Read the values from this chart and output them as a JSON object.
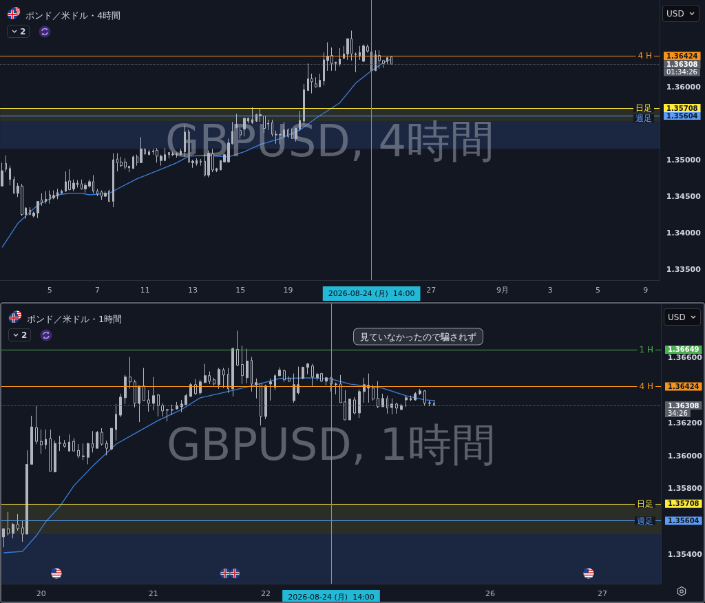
{
  "chart_data": [
    {
      "type": "candlestick",
      "title": "ポンド／米ドル・4時間",
      "subtitle": "GBPUSD, 4時間",
      "categories": [
        null,
        null,
        null,
        null,
        null,
        null,
        null,
        null,
        null,
        null,
        null,
        null,
        "5",
        null,
        null,
        null,
        null,
        null,
        null,
        null,
        null,
        null,
        null,
        null,
        "7",
        null,
        null,
        null,
        null,
        null,
        null,
        null,
        null,
        null,
        null,
        null,
        "11",
        null,
        null,
        null,
        null,
        null,
        null,
        null,
        null,
        null,
        null,
        null,
        "13",
        null,
        null,
        null,
        null,
        null,
        null,
        null,
        null,
        null,
        null,
        null,
        "15",
        null,
        null,
        null,
        null,
        null,
        null,
        null,
        null,
        null,
        null,
        null,
        "19",
        null,
        null,
        null,
        null,
        null,
        null,
        null,
        null,
        null,
        null,
        null,
        null,
        null,
        null,
        null,
        null,
        null,
        null,
        null,
        null,
        "2026-08-24 (月)  14:00",
        null,
        null,
        null,
        null,
        null,
        null,
        null,
        null,
        null,
        null,
        null,
        null,
        null,
        null,
        "27",
        null,
        null,
        null,
        null,
        null,
        null,
        null,
        null,
        null,
        null,
        null,
        null,
        null,
        null,
        null,
        null,
        null,
        "9月",
        null,
        null,
        null,
        null,
        null,
        null,
        null,
        null,
        null,
        null,
        null,
        "3",
        null,
        null,
        null,
        null,
        null,
        null,
        null,
        null,
        null,
        null,
        null,
        "5",
        null,
        null,
        null,
        null,
        null,
        null,
        null,
        null,
        null,
        null,
        null,
        "9",
        null,
        null,
        null
      ],
      "series": [
        {
          "type": "line",
          "color": "#3d7fd9",
          "values": [
            1.338,
            null,
            null,
            null,
            1.3413,
            null,
            null,
            null,
            null,
            1.3438,
            null,
            null,
            null,
            null,
            1.3452,
            null,
            null,
            1.3454,
            null,
            null,
            1.3454,
            null,
            1.3452,
            null,
            null,
            null,
            null,
            1.3454,
            null,
            1.346,
            null,
            null,
            null,
            null,
            1.3474,
            null,
            null,
            null,
            null,
            null,
            1.3487,
            null,
            null,
            null,
            1.3496,
            null,
            null,
            1.3505,
            null,
            null,
            null,
            1.3506,
            null,
            null,
            null,
            null,
            null,
            1.3504,
            null,
            null,
            null,
            1.3511,
            null,
            null,
            null,
            1.3521,
            null,
            null,
            null,
            null,
            1.3529,
            null,
            null,
            null,
            null,
            1.3541,
            null,
            null,
            null,
            1.3557,
            null,
            null,
            null,
            null,
            null,
            1.3578,
            null,
            null,
            null,
            1.3605,
            null,
            null,
            null,
            1.3622,
            null,
            null,
            1.3633,
            null,
            1.3638,
            null,
            null,
            null,
            null,
            null,
            null,
            null,
            null,
            null,
            null,
            null,
            null,
            null,
            null,
            null,
            null,
            null,
            null,
            null,
            null,
            null,
            null,
            null,
            null,
            null,
            null,
            null,
            null,
            null,
            null,
            null,
            null,
            null,
            null,
            null,
            null,
            null,
            null,
            null,
            null,
            null,
            null,
            null,
            null,
            null,
            null,
            null,
            null,
            null,
            null,
            null,
            null,
            null,
            null,
            null,
            null,
            null,
            null,
            null,
            null,
            null,
            null,
            null,
            null,
            null,
            null,
            null
          ]
        },
        {
          "type": "candlestick",
          "color": "#b2b5be",
          "ohlc": [
            [
              1.3464,
              1.3496,
              1.3464,
              1.3485
            ],
            [
              1.3495,
              1.3506,
              1.3483,
              1.3487
            ],
            [
              1.3473,
              1.3492,
              1.3465,
              1.3488
            ],
            [
              1.3473,
              1.3477,
              1.3454,
              1.3454
            ],
            [
              1.3454,
              1.3468,
              1.3449,
              1.3464
            ],
            [
              1.3464,
              1.3467,
              1.3423,
              1.3425
            ],
            [
              1.3425,
              1.3435,
              1.3419,
              1.3434
            ],
            [
              1.3431,
              1.3435,
              1.3424,
              1.3425
            ],
            [
              1.3423,
              1.3429,
              1.3421,
              1.3427
            ],
            [
              1.3427,
              1.3443,
              1.342,
              1.3443
            ],
            [
              1.3445,
              1.3454,
              1.3437,
              1.3441
            ],
            [
              1.3443,
              1.3457,
              1.344,
              1.3446
            ],
            [
              1.3452,
              1.3458,
              1.344,
              1.3446
            ],
            [
              1.3448,
              1.3458,
              1.3446,
              1.3451
            ],
            [
              1.345,
              1.346,
              1.3446,
              1.3455
            ],
            [
              1.3454,
              1.3459,
              1.3454,
              1.3457
            ],
            [
              1.3457,
              1.3484,
              1.3456,
              1.347
            ],
            [
              1.3471,
              1.3487,
              1.3458,
              1.3459
            ],
            [
              1.346,
              1.3473,
              1.3457,
              1.3468
            ],
            [
              1.3466,
              1.3472,
              1.3462,
              1.3468
            ],
            [
              1.3467,
              1.3473,
              1.3459,
              1.346
            ],
            [
              1.346,
              1.3468,
              1.3455,
              1.3465
            ],
            [
              1.3464,
              1.3473,
              1.3462,
              1.347
            ],
            [
              1.347,
              1.3479,
              1.3454,
              1.3457
            ],
            [
              1.3457,
              1.346,
              1.345,
              1.3453
            ],
            [
              1.3456,
              1.3458,
              1.3445,
              1.345
            ],
            [
              1.345,
              1.3457,
              1.3449,
              1.3454
            ],
            [
              1.3457,
              1.3459,
              1.3442,
              1.3443
            ],
            [
              1.3443,
              1.3509,
              1.3435,
              1.35
            ],
            [
              1.3501,
              1.3509,
              1.3484,
              1.3496
            ],
            [
              1.3497,
              1.3504,
              1.349,
              1.3492
            ],
            [
              1.3497,
              1.3502,
              1.3487,
              1.349
            ],
            [
              1.3489,
              1.3492,
              1.3483,
              1.3491
            ],
            [
              1.3488,
              1.3506,
              1.3488,
              1.3504
            ],
            [
              1.3504,
              1.3507,
              1.3492,
              1.3496
            ],
            [
              1.3496,
              1.3531,
              1.3496,
              1.3515
            ],
            [
              1.3514,
              1.3516,
              1.3507,
              1.3508
            ],
            [
              1.3507,
              1.3514,
              1.3506,
              1.3511
            ],
            [
              1.3511,
              1.3515,
              1.3507,
              1.3512
            ],
            [
              1.3513,
              1.3516,
              1.3496,
              1.3505
            ],
            [
              1.3499,
              1.3507,
              1.3492,
              1.3505
            ],
            [
              1.3499,
              1.3516,
              1.3498,
              1.3507
            ],
            [
              1.351,
              1.351,
              1.3502,
              1.3507
            ],
            [
              1.3507,
              1.3511,
              1.3505,
              1.3508
            ],
            [
              1.3507,
              1.351,
              1.3503,
              1.3508
            ],
            [
              1.3507,
              1.3515,
              1.3506,
              1.3512
            ],
            [
              1.3511,
              1.3547,
              1.3504,
              1.3538
            ],
            [
              1.3538,
              1.3541,
              1.3496,
              1.3497
            ],
            [
              1.3496,
              1.35,
              1.3489,
              1.3498
            ],
            [
              1.3495,
              1.3502,
              1.3492,
              1.3499
            ],
            [
              1.3497,
              1.3501,
              1.3492,
              1.3498
            ],
            [
              1.3498,
              1.3508,
              1.3477,
              1.3479
            ],
            [
              1.3479,
              1.3513,
              1.3476,
              1.3509
            ],
            [
              1.3508,
              1.3515,
              1.3483,
              1.3486
            ],
            [
              1.3485,
              1.3489,
              1.3483,
              1.3488
            ],
            [
              1.3486,
              1.3499,
              1.3486,
              1.3499
            ],
            [
              1.3497,
              1.3508,
              1.3497,
              1.3507
            ],
            [
              1.3497,
              1.3529,
              1.3497,
              1.3523
            ],
            [
              1.3522,
              1.3552,
              1.3521,
              1.3539
            ],
            [
              1.3544,
              1.3563,
              1.3543,
              1.3549
            ],
            [
              1.354,
              1.3544,
              1.3529,
              1.3534
            ],
            [
              1.3542,
              1.3557,
              1.3532,
              1.3557
            ],
            [
              1.3553,
              1.3558,
              1.355,
              1.3557
            ],
            [
              1.3551,
              1.3572,
              1.3549,
              1.3555
            ],
            [
              1.3553,
              1.3563,
              1.3552,
              1.3562
            ],
            [
              1.356,
              1.357,
              1.3552,
              1.3562
            ],
            [
              1.356,
              1.3561,
              1.3537,
              1.3543
            ],
            [
              1.3549,
              1.3555,
              1.3541,
              1.355
            ],
            [
              1.3551,
              1.3555,
              1.3532,
              1.3535
            ],
            [
              1.3534,
              1.354,
              1.3522,
              1.3535
            ],
            [
              1.3534,
              1.3535,
              1.3521,
              1.3535
            ],
            [
              1.3532,
              1.3552,
              1.353,
              1.3541
            ],
            [
              1.3541,
              1.3543,
              1.353,
              1.3532
            ],
            [
              1.3535,
              1.3543,
              1.3529,
              1.3529
            ],
            [
              1.3529,
              1.3544,
              1.3525,
              1.3543
            ],
            [
              1.3542,
              1.3567,
              1.354,
              1.3554
            ],
            [
              1.3553,
              1.3604,
              1.3548,
              1.3596
            ],
            [
              1.3595,
              1.3632,
              1.3595,
              1.3611
            ],
            [
              1.3611,
              1.3618,
              1.3591,
              1.3607
            ],
            [
              1.3604,
              1.3613,
              1.3599,
              1.36
            ],
            [
              1.36,
              1.3618,
              1.36,
              1.3609
            ],
            [
              1.3608,
              1.3647,
              1.3602,
              1.3637
            ],
            [
              1.3636,
              1.3661,
              1.3622,
              1.3642
            ],
            [
              1.3643,
              1.3654,
              1.3622,
              1.3632
            ],
            [
              1.3632,
              1.3634,
              1.3622,
              1.3634
            ],
            [
              1.3631,
              1.3653,
              1.3628,
              1.3638
            ],
            [
              1.3639,
              1.3656,
              1.3638,
              1.3645
            ],
            [
              1.3645,
              1.3666,
              1.3637,
              1.3666
            ],
            [
              1.3666,
              1.3677,
              1.3636,
              1.3645
            ],
            [
              1.3644,
              1.3647,
              1.362,
              1.3645
            ],
            [
              1.3643,
              1.3656,
              1.3637,
              1.3647
            ],
            [
              1.3635,
              1.3658,
              1.3634,
              1.3656
            ],
            [
              1.3655,
              1.3658,
              1.3647,
              1.3649
            ],
            [
              1.3648,
              1.365,
              1.3622,
              1.3622
            ],
            [
              1.3622,
              1.365,
              1.3622,
              1.3644
            ],
            [
              1.3643,
              1.365,
              1.3625,
              1.3636
            ],
            [
              1.3636,
              1.3637,
              1.3626,
              1.3632
            ],
            [
              1.3635,
              1.3641,
              1.3631,
              1.364
            ],
            [
              1.3641,
              1.3641,
              1.3631,
              1.3631
            ],
            null,
            null,
            null,
            null,
            null,
            null,
            null,
            null,
            null,
            null,
            null,
            null,
            null,
            null,
            null,
            null,
            null,
            null,
            null,
            null,
            null,
            null,
            null,
            null,
            null,
            null,
            null,
            null,
            null,
            null,
            null,
            null,
            null,
            null,
            null,
            null,
            null,
            null,
            null,
            null,
            null,
            null,
            null,
            null,
            null,
            null,
            null,
            null,
            null,
            null,
            null,
            null,
            null,
            null,
            null,
            null,
            null,
            null,
            null,
            null,
            null,
            null,
            null,
            null,
            null,
            null,
            null
          ]
        }
      ],
      "ylim": [
        1.3335,
        1.3719
      ],
      "yticks": [
        {
          "value": 1.335,
          "label": "1.33500"
        },
        {
          "value": 1.34,
          "label": "1.34000"
        },
        {
          "value": 1.345,
          "label": "1.34500"
        },
        {
          "value": 1.35,
          "label": "1.35000"
        },
        {
          "value": 1.35604,
          "label": "1.35604"
        },
        {
          "value": 1.35708,
          "label": "1.35708"
        },
        {
          "value": 1.36,
          "label": "1.36000"
        },
        {
          "value": 1.36308,
          "label": "1.36308"
        },
        {
          "value": 1.36424,
          "label": "1.36424"
        }
      ],
      "ref_lines": [
        {
          "axis": "y",
          "value": 1.36424,
          "label": "4 H",
          "color": "#f7931a"
        },
        {
          "axis": "y",
          "value": 1.36308,
          "label": null,
          "color": "#5d606b",
          "line_style": "dotted"
        },
        {
          "axis": "y",
          "value": 1.35708,
          "label": "日足",
          "color": "#ffeb3b"
        },
        {
          "axis": "y",
          "value": 1.35604,
          "label": "週足",
          "color": "#5b9cf6"
        },
        {
          "axis": "x",
          "value": "2026-08-24 (月)  14:00",
          "label": null,
          "color": "#22b8d6"
        }
      ],
      "bands": [
        {
          "axis": "y",
          "from": 1.3553,
          "to": 1.35708,
          "color": "#2b2d27"
        },
        {
          "axis": "y",
          "from": 1.3515,
          "to": 1.3553,
          "color": "#1b2740"
        }
      ],
      "annotations": [
        "2",
        "USD",
        "01:34:26"
      ]
    },
    {
      "type": "candlestick",
      "title": "ポンド／米ドル・1時間",
      "subtitle": "GBPUSD, 1時間",
      "categories": [
        null,
        null,
        null,
        null,
        null,
        null,
        null,
        null,
        "20",
        null,
        null,
        null,
        null,
        null,
        null,
        null,
        null,
        null,
        null,
        null,
        null,
        null,
        null,
        null,
        null,
        null,
        null,
        null,
        null,
        null,
        null,
        null,
        "21",
        null,
        null,
        null,
        null,
        null,
        null,
        null,
        null,
        null,
        null,
        null,
        null,
        null,
        null,
        null,
        null,
        null,
        null,
        null,
        null,
        null,
        null,
        null,
        "22",
        null,
        null,
        null,
        null,
        null,
        null,
        null,
        null,
        null,
        null,
        null,
        null,
        null,
        "2026-08-24 (月)  14:00",
        null,
        null,
        null,
        null,
        null,
        null,
        null,
        null,
        null,
        null,
        null,
        null,
        null,
        null,
        null,
        null,
        null,
        null,
        null,
        null,
        null,
        null,
        null,
        null,
        null,
        null,
        null,
        null,
        null,
        null,
        null,
        null,
        null,
        "26",
        null,
        null,
        null,
        null,
        null,
        null,
        null,
        null,
        null,
        null,
        null,
        null,
        null,
        null,
        null,
        null,
        null,
        null,
        null,
        null,
        null,
        null,
        null,
        "27",
        null,
        null,
        null,
        null,
        null,
        null,
        null,
        null,
        null,
        null,
        null,
        null
      ],
      "series": [
        {
          "type": "line",
          "color": "#3d7fd9",
          "values": [
            1.35409,
            null,
            null,
            null,
            1.35417,
            null,
            null,
            1.35514,
            null,
            1.35599,
            null,
            null,
            1.35692,
            null,
            null,
            1.35818,
            null,
            null,
            null,
            1.35937,
            null,
            null,
            null,
            null,
            1.36072,
            null,
            null,
            null,
            null,
            1.36152,
            null,
            null,
            null,
            1.36216,
            null,
            null,
            null,
            null,
            1.36283,
            null,
            null,
            null,
            1.36355,
            null,
            null,
            null,
            1.3638,
            null,
            null,
            null,
            null,
            null,
            null,
            null,
            1.36435,
            null,
            null,
            null,
            null,
            1.36473,
            null,
            null,
            null,
            null,
            null,
            null,
            1.36477,
            null,
            null,
            null,
            1.36469,
            null,
            null,
            null,
            1.36439,
            null,
            null,
            null,
            null,
            null,
            null,
            1.36414,
            null,
            null,
            null,
            null,
            1.36368,
            null,
            null,
            null,
            1.36342,
            null,
            1.36338,
            null,
            null,
            null,
            null,
            null,
            null,
            null,
            null,
            null,
            null,
            null,
            null,
            null,
            null,
            null,
            null,
            null,
            null,
            null,
            null,
            null,
            null,
            null,
            null,
            null,
            null,
            null,
            null,
            null,
            null,
            null,
            null,
            null,
            null,
            null,
            null,
            null,
            null,
            null,
            null,
            null,
            null,
            null,
            null,
            null,
            null,
            null,
            null
          ]
        },
        {
          "type": "candlestick",
          "color": "#b2b5be",
          "ohlc": [
            [
              1.35506,
              1.35556,
              1.35442,
              1.35556
            ],
            [
              1.35556,
              1.35658,
              1.35514,
              1.35527
            ],
            [
              1.35527,
              1.3559,
              1.35497,
              1.35582
            ],
            [
              1.35582,
              1.35645,
              1.35544,
              1.35556
            ],
            [
              1.35561,
              1.35603,
              1.35476,
              1.35523
            ],
            [
              1.35523,
              1.36034,
              1.35523,
              1.35949
            ],
            [
              1.35949,
              1.36245,
              1.35949,
              1.36177
            ],
            [
              1.36173,
              1.36308,
              1.36072,
              1.36089
            ],
            [
              1.36089,
              1.36161,
              1.36013,
              1.36068
            ],
            [
              1.36068,
              1.36161,
              1.36042,
              1.36101
            ],
            [
              1.36106,
              1.36161,
              1.35907,
              1.35907
            ],
            [
              1.35903,
              1.36093,
              1.35899,
              1.36076
            ],
            [
              1.36076,
              1.36123,
              1.3603,
              1.3608
            ],
            [
              1.36076,
              1.36097,
              1.36051,
              1.36059
            ],
            [
              1.3603,
              1.36131,
              1.36025,
              1.36085
            ],
            [
              1.36089,
              1.3611,
              1.3603,
              1.3603
            ],
            [
              1.36034,
              1.36072,
              1.35987,
              1.36
            ],
            [
              1.35996,
              1.36076,
              1.35975,
              1.36
            ],
            [
              1.35992,
              1.3608,
              1.35949,
              1.36076
            ],
            [
              1.36076,
              1.36152,
              1.36021,
              1.36051
            ],
            [
              1.36047,
              1.36152,
              1.36047,
              1.36144
            ],
            [
              1.36144,
              1.36169,
              1.36063,
              1.36072
            ],
            [
              1.36076,
              1.36093,
              1.36004,
              1.36047
            ],
            [
              1.36042,
              1.36169,
              1.36034,
              1.36169
            ],
            [
              1.36161,
              1.36317,
              1.36093,
              1.36254
            ],
            [
              1.36249,
              1.3638,
              1.36237,
              1.36359
            ],
            [
              1.36355,
              1.36494,
              1.36317,
              1.36482
            ],
            [
              1.36482,
              1.36604,
              1.3641,
              1.36452
            ],
            [
              1.36452,
              1.36465,
              1.36296,
              1.36321
            ],
            [
              1.36321,
              1.36427,
              1.36207,
              1.36427
            ],
            [
              1.36427,
              1.36537,
              1.36338,
              1.36338
            ],
            [
              1.36342,
              1.36401,
              1.3627,
              1.36321
            ],
            [
              1.36321,
              1.36482,
              1.36279,
              1.36368
            ],
            [
              1.36372,
              1.3638,
              1.36241,
              1.36308
            ],
            [
              1.36308,
              1.36321,
              1.36241,
              1.36275
            ],
            [
              1.36279,
              1.36287,
              1.36211,
              1.36283
            ],
            [
              1.36279,
              1.36313,
              1.36249,
              1.36283
            ],
            [
              1.36287,
              1.3633,
              1.36283,
              1.36308
            ],
            [
              1.363,
              1.36342,
              1.36266,
              1.36317
            ],
            [
              1.36313,
              1.3638,
              1.36313,
              1.36368
            ],
            [
              1.36363,
              1.36444,
              1.36363,
              1.36435
            ],
            [
              1.36435,
              1.36469,
              1.36372,
              1.3638
            ],
            [
              1.36385,
              1.36465,
              1.36372,
              1.36452
            ],
            [
              1.36448,
              1.36562,
              1.36444,
              1.3649
            ],
            [
              1.3649,
              1.36516,
              1.36439,
              1.36456
            ],
            [
              1.36465,
              1.36477,
              1.36431,
              1.36439
            ],
            [
              1.36435,
              1.36537,
              1.3641,
              1.36528
            ],
            [
              1.36524,
              1.36537,
              1.36414,
              1.36494
            ],
            [
              1.36499,
              1.36537,
              1.36385,
              1.3641
            ],
            [
              1.3641,
              1.36663,
              1.36363,
              1.36655
            ],
            [
              1.36651,
              1.36765,
              1.36549,
              1.36554
            ],
            [
              1.36558,
              1.36672,
              1.36439,
              1.3649
            ],
            [
              1.36477,
              1.36655,
              1.36444,
              1.36579
            ],
            [
              1.36583,
              1.36604,
              1.36393,
              1.36439
            ],
            [
              1.36435,
              1.36473,
              1.36351,
              1.36448
            ],
            [
              1.36444,
              1.36444,
              1.36186,
              1.36241
            ],
            [
              1.36241,
              1.36435,
              1.36224,
              1.36427
            ],
            [
              1.36439,
              1.36473,
              1.36338,
              1.36452
            ],
            [
              1.36418,
              1.36499,
              1.36401,
              1.3649
            ],
            [
              1.3649,
              1.36541,
              1.36486,
              1.36524
            ],
            [
              1.3652,
              1.36528,
              1.36452,
              1.36465
            ],
            [
              1.36473,
              1.36486,
              1.36452,
              1.36456
            ],
            [
              1.36338,
              1.36503,
              1.36325,
              1.36435
            ],
            [
              1.36385,
              1.36545,
              1.36376,
              1.36435
            ],
            [
              1.36473,
              1.36545,
              1.36469,
              1.36541
            ],
            [
              1.36541,
              1.36566,
              1.36499,
              1.36562
            ],
            [
              1.36549,
              1.36562,
              1.36427,
              1.36482
            ],
            [
              1.36477,
              1.36507,
              1.36461,
              1.36499
            ],
            [
              1.36503,
              1.36507,
              1.36452,
              1.36456
            ],
            [
              1.36456,
              1.36482,
              1.36431,
              1.36477
            ],
            [
              1.36477,
              1.36482,
              1.36393,
              1.36439
            ],
            [
              1.36435,
              1.36448,
              1.36376,
              1.36439
            ],
            [
              1.36439,
              1.36494,
              1.36325,
              1.36325
            ],
            [
              1.3633,
              1.36401,
              1.3622,
              1.3622
            ],
            [
              1.3622,
              1.36347,
              1.3622,
              1.36347
            ],
            [
              1.36342,
              1.36359,
              1.36254,
              1.36262
            ],
            [
              1.36262,
              1.36406,
              1.36232,
              1.36393
            ],
            [
              1.36393,
              1.36477,
              1.36325,
              1.36435
            ],
            [
              1.36414,
              1.36503,
              1.36325,
              1.36431
            ],
            [
              1.36414,
              1.36435,
              1.36338,
              1.36347
            ],
            [
              1.36351,
              1.36456,
              1.36292,
              1.363
            ],
            [
              1.363,
              1.3638,
              1.363,
              1.36351
            ],
            [
              1.36351,
              1.36368,
              1.36258,
              1.36292
            ],
            [
              1.36296,
              1.36351,
              1.36254,
              1.36317
            ],
            [
              1.36317,
              1.36325,
              1.36258,
              1.36292
            ],
            [
              1.36283,
              1.36317,
              1.36279,
              1.36308
            ],
            [
              1.36342,
              1.36368,
              1.363,
              1.36355
            ],
            [
              1.36342,
              1.36368,
              1.36334,
              1.36351
            ],
            [
              1.36342,
              1.36389,
              1.36338,
              1.3638
            ],
            [
              1.3638,
              1.3641,
              1.36372,
              1.36397
            ],
            [
              1.36397,
              1.36401,
              1.36308,
              1.36321
            ],
            [
              1.36321,
              1.36338,
              1.36304,
              1.36325
            ],
            [
              1.36321,
              1.36342,
              1.36308,
              1.36308
            ],
            null,
            null,
            null,
            null,
            null,
            null,
            null,
            null,
            null,
            null,
            null,
            null,
            null,
            null,
            null,
            null,
            null,
            null,
            null,
            null,
            null,
            null,
            null,
            null,
            null,
            null,
            null,
            null,
            null,
            null,
            null,
            null,
            null,
            null,
            null,
            null,
            null,
            null,
            null,
            null,
            null,
            null,
            null,
            null,
            null,
            null,
            null,
            null
          ]
        }
      ],
      "ylim": [
        1.3522,
        1.3693
      ],
      "yticks": [
        {
          "value": 1.354,
          "label": "1.35400"
        },
        {
          "value": 1.35604,
          "label": "1.35604"
        },
        {
          "value": 1.35708,
          "label": "1.35708"
        },
        {
          "value": 1.358,
          "label": "1.35800"
        },
        {
          "value": 1.36,
          "label": "1.36000"
        },
        {
          "value": 1.362,
          "label": "1.36200"
        },
        {
          "value": 1.36308,
          "label": "1.36308"
        },
        {
          "value": 1.36424,
          "label": "1.36424"
        },
        {
          "value": 1.366,
          "label": "1.36600"
        },
        {
          "value": 1.36649,
          "label": "1.36649"
        }
      ],
      "ref_lines": [
        {
          "axis": "y",
          "value": 1.36649,
          "label": "1 H",
          "color": "#4caf50"
        },
        {
          "axis": "y",
          "value": 1.36424,
          "label": "4 H",
          "color": "#f7931a"
        },
        {
          "axis": "y",
          "value": 1.36308,
          "label": null,
          "color": "#5d606b",
          "line_style": "dotted"
        },
        {
          "axis": "y",
          "value": 1.35708,
          "label": "日足",
          "color": "#ffeb3b"
        },
        {
          "axis": "y",
          "value": 1.35604,
          "label": "週足",
          "color": "#5b9cf6"
        },
        {
          "axis": "x",
          "value": "2026-08-24 (月)  14:00",
          "label": null,
          "color": "#22b8d6"
        }
      ],
      "bands": [
        {
          "axis": "y",
          "from": 1.35523,
          "to": 1.35708,
          "color": "#2b2d27"
        },
        {
          "axis": "y",
          "from": 1.3522,
          "to": 1.35523,
          "color": "#1b2740"
        }
      ],
      "annotations": [
        "2",
        "USD",
        "34:26",
        "見ていなかったので騙されず"
      ]
    }
  ]
}
